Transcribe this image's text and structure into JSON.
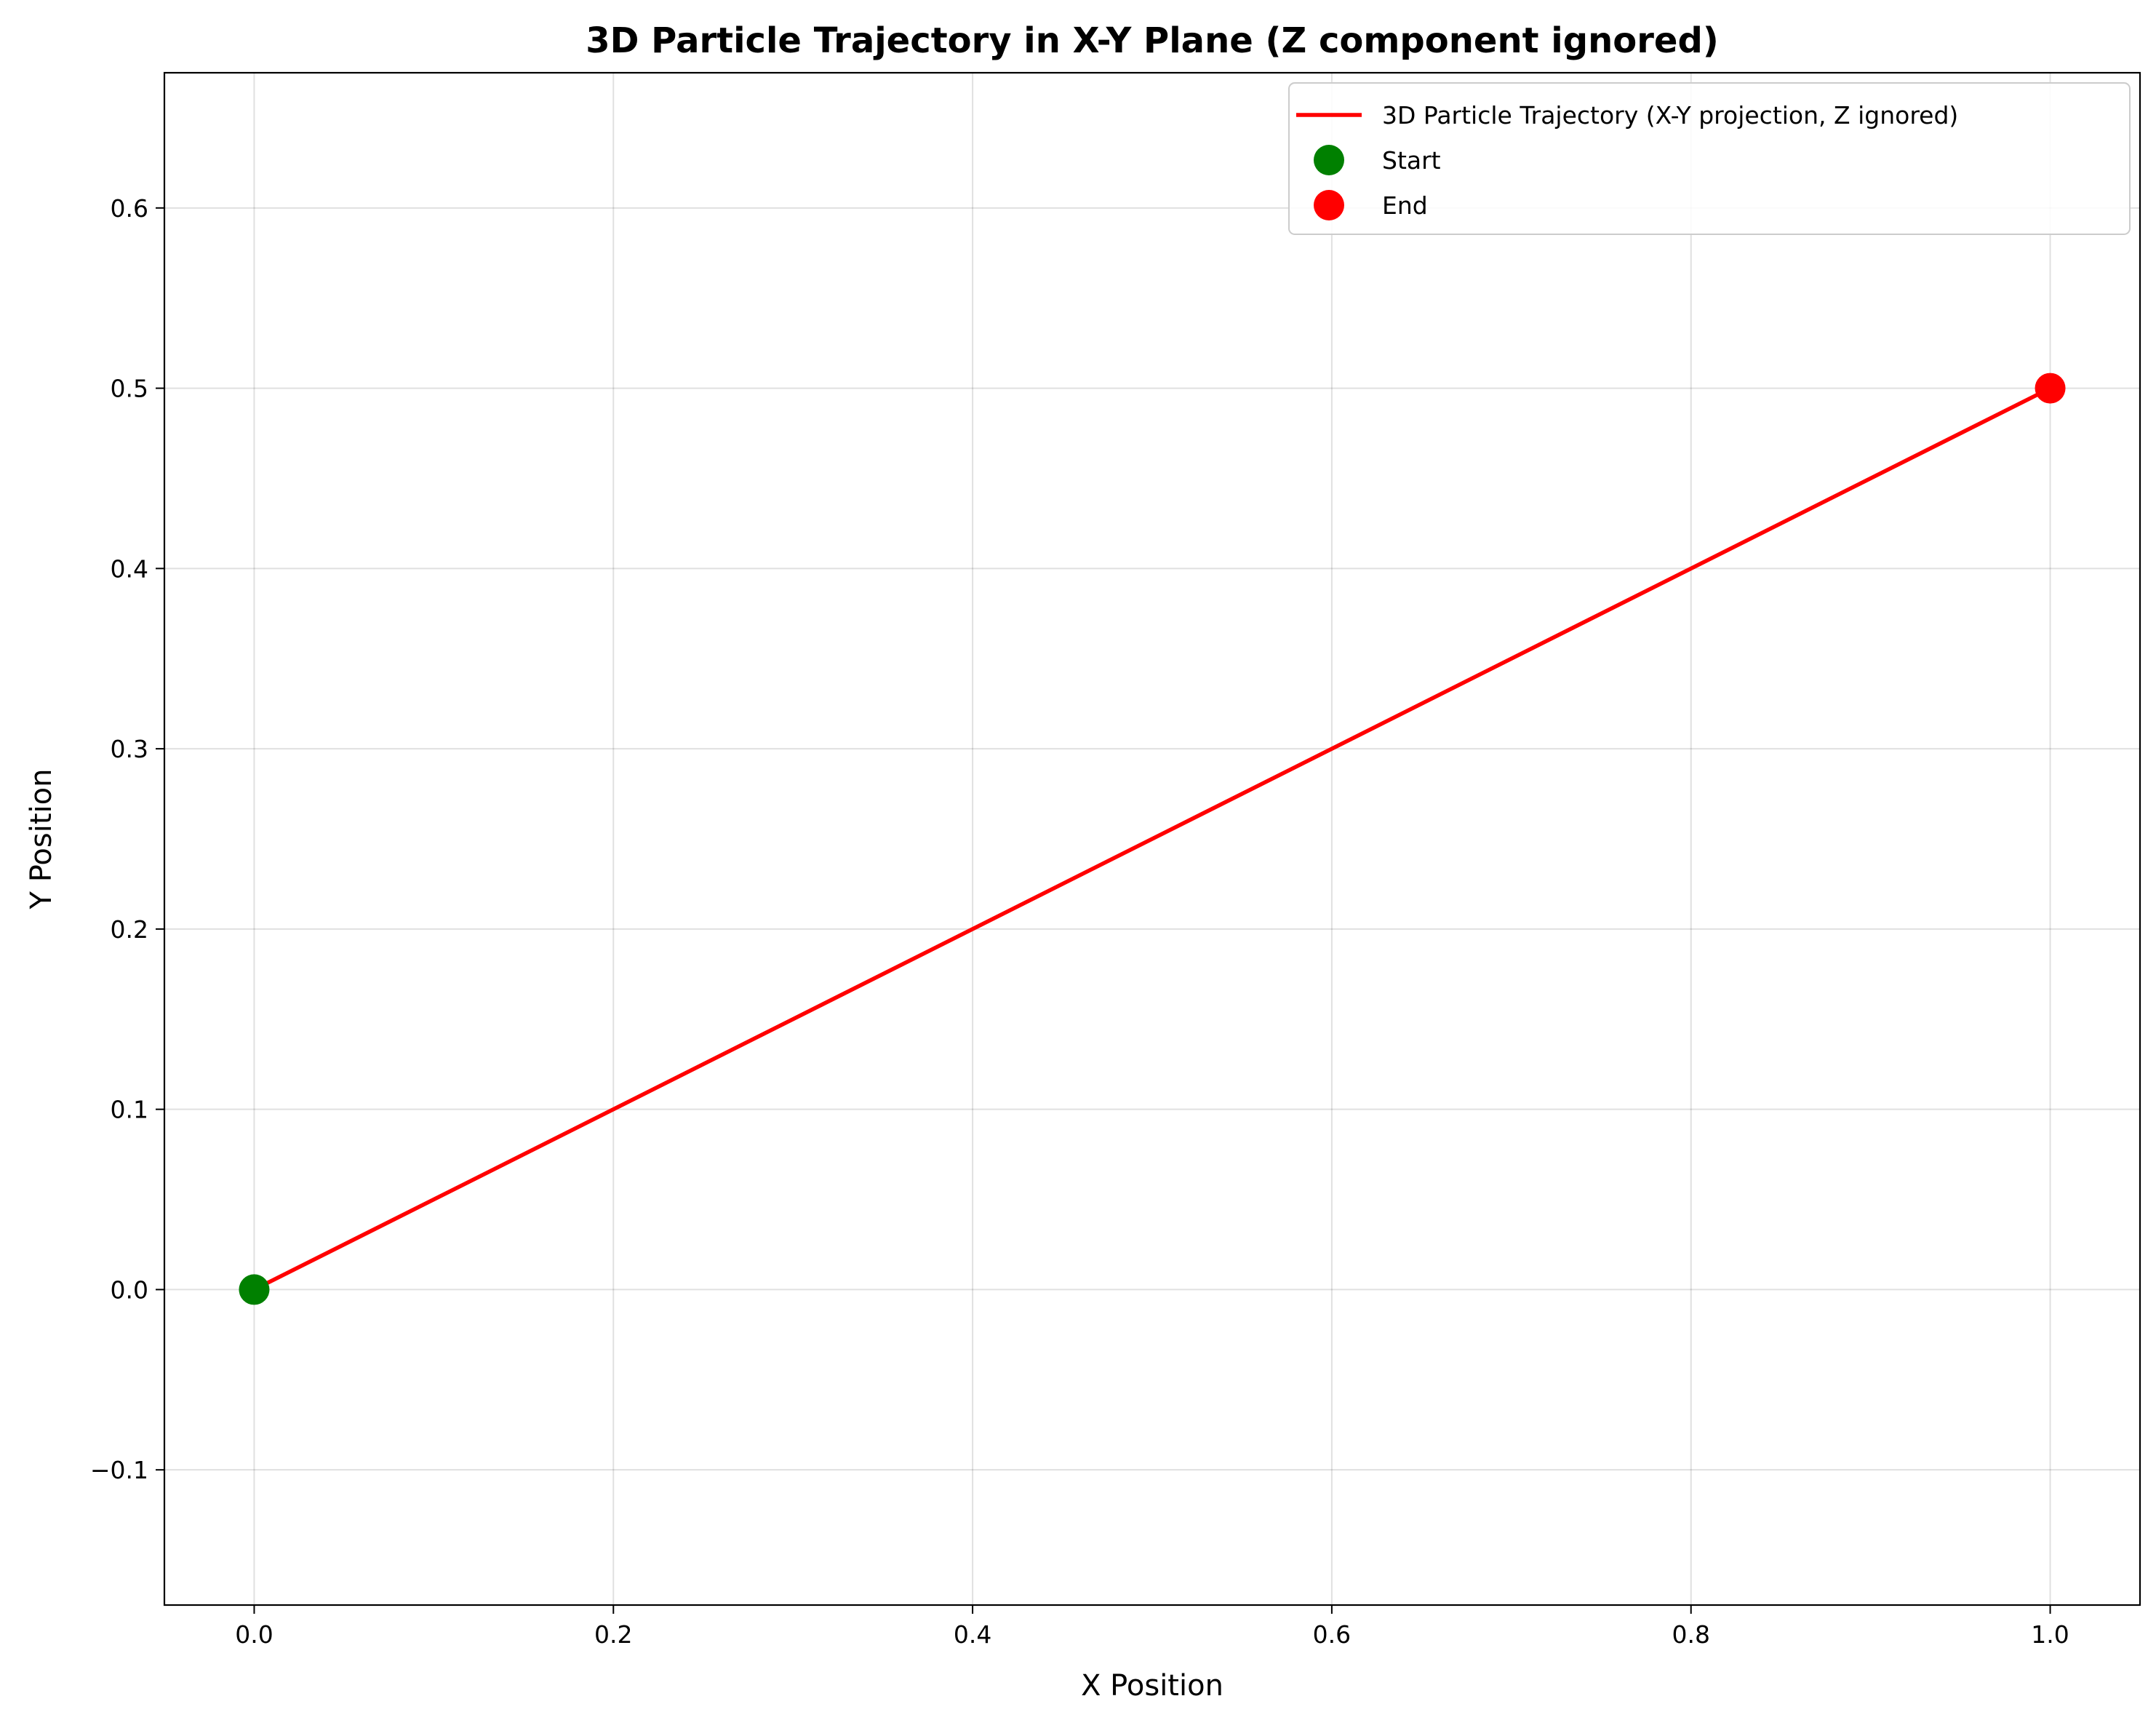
{
  "chart_data": {
    "type": "line",
    "title": "3D Particle Trajectory in X-Y Plane (Z component ignored)",
    "xlabel": "X Position",
    "ylabel": "Y Position",
    "xlim": [
      -0.05,
      1.05
    ],
    "ylim": [
      -0.175,
      0.675
    ],
    "grid": true,
    "legend_position": "top-right",
    "x_ticks": [
      {
        "value": 0.0,
        "label": "0.0"
      },
      {
        "value": 0.2,
        "label": "0.2"
      },
      {
        "value": 0.4,
        "label": "0.4"
      },
      {
        "value": 0.6,
        "label": "0.6"
      },
      {
        "value": 0.8,
        "label": "0.8"
      },
      {
        "value": 1.0,
        "label": "1.0"
      }
    ],
    "y_ticks": [
      {
        "value": -0.1,
        "label": "−0.1"
      },
      {
        "value": 0.0,
        "label": "0.0"
      },
      {
        "value": 0.1,
        "label": "0.1"
      },
      {
        "value": 0.2,
        "label": "0.2"
      },
      {
        "value": 0.3,
        "label": "0.3"
      },
      {
        "value": 0.4,
        "label": "0.4"
      },
      {
        "value": 0.5,
        "label": "0.5"
      },
      {
        "value": 0.6,
        "label": "0.6"
      }
    ],
    "series": [
      {
        "name": "3D Particle Trajectory (X-Y projection, Z ignored)",
        "kind": "line",
        "color": "#ff0000",
        "x": [
          0.0,
          1.0
        ],
        "y": [
          0.0,
          0.5
        ]
      },
      {
        "name": "Start",
        "kind": "scatter",
        "color": "#008000",
        "x": [
          0.0
        ],
        "y": [
          0.0
        ]
      },
      {
        "name": "End",
        "kind": "scatter",
        "color": "#ff0000",
        "x": [
          1.0
        ],
        "y": [
          0.5
        ]
      }
    ]
  }
}
